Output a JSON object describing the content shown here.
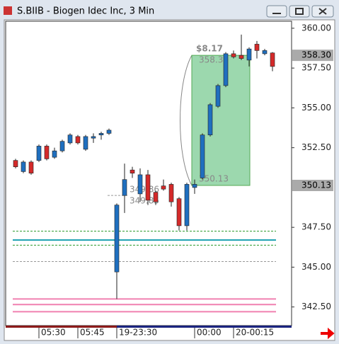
{
  "chart_data": {
    "type": "candlestick",
    "title": "S.BIIB - Biogen Idec Inc, 3 Min",
    "categories": [
      null,
      null,
      null,
      "05:30",
      null,
      null,
      null,
      null,
      "05:45",
      null,
      null,
      null,
      null,
      "19-23:30",
      null,
      null,
      null,
      null,
      null,
      null,
      null,
      null,
      null,
      "00:00",
      null,
      null,
      null,
      null,
      "20-00:15",
      null,
      null,
      null,
      null,
      null
    ],
    "open": [
      351.7,
      351.0,
      351.6,
      351.7,
      352.6,
      351.9,
      352.3,
      352.8,
      353.2,
      352.4,
      353.1,
      353.3,
      353.4,
      344.7,
      349.5,
      351.1,
      349.6,
      350.8,
      349.7,
      350.1,
      350.2,
      349.3,
      347.6,
      350.0,
      350.6,
      353.3,
      355.1,
      356.4,
      358.4,
      358.3,
      358.0,
      359.0,
      358.4,
      358.45
    ],
    "high": [
      351.8,
      351.7,
      351.7,
      352.7,
      352.7,
      352.5,
      353.0,
      353.4,
      353.3,
      353.3,
      353.4,
      353.5,
      353.7,
      349.0,
      351.5,
      351.3,
      351.2,
      351.1,
      349.8,
      350.5,
      350.3,
      349.4,
      350.3,
      350.5,
      353.4,
      355.3,
      356.5,
      358.5,
      358.6,
      359.6,
      358.8,
      359.2,
      358.7,
      358.5
    ],
    "low": [
      351.2,
      350.9,
      350.8,
      351.6,
      351.7,
      351.8,
      352.2,
      352.7,
      352.7,
      352.3,
      352.8,
      353.0,
      353.3,
      343.0,
      348.4,
      350.6,
      349.1,
      348.9,
      348.9,
      349.8,
      348.8,
      347.3,
      347.3,
      349.6,
      350.5,
      353.2,
      355.0,
      356.3,
      358.1,
      358.0,
      357.6,
      358.1,
      358.3,
      357.3
    ],
    "close": [
      351.3,
      351.6,
      350.9,
      352.6,
      351.8,
      352.3,
      352.9,
      353.3,
      352.8,
      353.2,
      353.2,
      353.4,
      353.6,
      348.9,
      350.5,
      350.9,
      350.8,
      349.2,
      349.1,
      349.9,
      349.1,
      347.6,
      350.2,
      350.2,
      353.3,
      355.2,
      356.4,
      358.4,
      358.2,
      358.1,
      358.7,
      358.6,
      358.6,
      357.6
    ],
    "up_color": "#1f6fbf",
    "down_color": "#d42a2a",
    "ylim": [
      341.33,
      360.44
    ],
    "yticks": [
      {
        "value": 342.5,
        "label": "342.50"
      },
      {
        "value": 345,
        "label": "345.00"
      },
      {
        "value": 347.5,
        "label": "347.50"
      },
      {
        "value": 352.5,
        "label": "352.50"
      },
      {
        "value": 355,
        "label": "355.00"
      },
      {
        "value": 357.5,
        "label": "357.50"
      },
      {
        "value": 360,
        "label": "360.00"
      }
    ],
    "levels": [
      {
        "value": 347.26,
        "color": "#2a9a2a",
        "dash": true
      },
      {
        "value": 346.7,
        "color": "#1aa0b0",
        "dash": false
      },
      {
        "value": 346.38,
        "color": "#2a9a2a",
        "dash": true
      },
      {
        "value": 345.35,
        "color": "#999999",
        "dash": true
      },
      {
        "value": 343.0,
        "color": "#f080b0",
        "dash": false
      },
      {
        "value": 342.65,
        "color": "#f080b0",
        "dash": false
      },
      {
        "value": 342.2,
        "color": "#f080b0",
        "dash": false
      }
    ],
    "price_tags": [
      {
        "value": 358.3,
        "label": "358.30"
      },
      {
        "value": 350.13,
        "label": "350.13"
      }
    ],
    "measure": {
      "label": "$8.17",
      "high": {
        "value": 358.3,
        "label": "358.30"
      },
      "low": {
        "value": 350.13,
        "label": "350.13"
      }
    },
    "crosshair_labels": [
      {
        "value": 349.86,
        "label": "349.86"
      },
      {
        "value": 349.85,
        "label": "349.85"
      }
    ]
  }
}
